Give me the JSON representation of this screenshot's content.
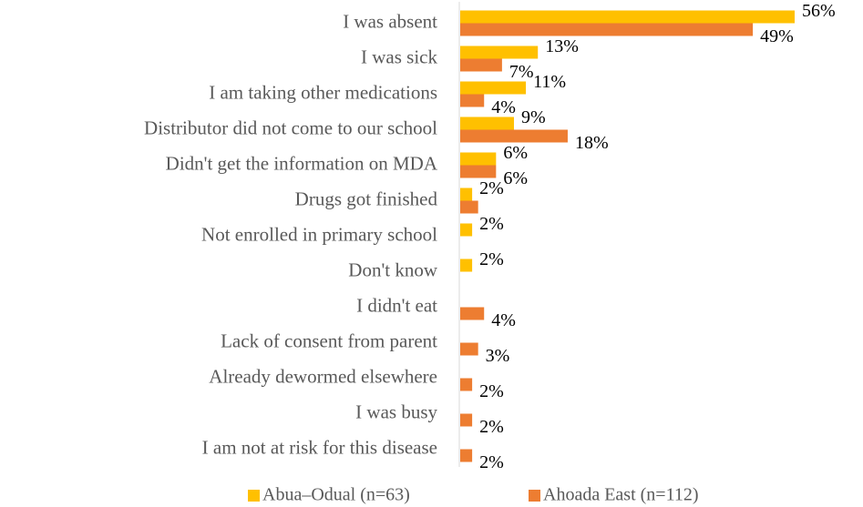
{
  "chart_data": {
    "type": "hbar",
    "categories": [
      "I was absent",
      "I was sick",
      "I am taking other medications",
      "Distributor did not come to our school",
      "Didn't get the information on MDA",
      "Drugs got finished",
      "Not enrolled in primary school",
      "Don't know",
      "I didn't eat",
      "Lack of consent from parent",
      "Already dewormed elsewhere",
      "I was busy",
      "I am not at risk for this disease"
    ],
    "series": [
      {
        "name": "Abua–Odual (n=63)",
        "color": "#ffc000",
        "values": [
          56,
          13,
          11,
          9,
          6,
          2,
          2,
          2,
          null,
          null,
          null,
          null,
          null
        ],
        "value_labels": [
          "56%",
          "13%",
          "11%",
          "9%",
          "6%",
          "2%",
          "2%",
          "2%",
          null,
          null,
          null,
          null,
          null
        ]
      },
      {
        "name": "Ahoada East (n=112)",
        "color": "#ed7d31",
        "values": [
          49,
          7,
          4,
          18,
          6,
          3,
          null,
          null,
          4,
          3,
          2,
          2,
          2
        ],
        "value_labels": [
          "49%",
          "7%",
          "4%",
          "18%",
          "6%",
          null,
          null,
          null,
          "4%",
          "3%",
          "2%",
          "2%",
          "2%"
        ]
      }
    ],
    "legend": "bottom"
  }
}
